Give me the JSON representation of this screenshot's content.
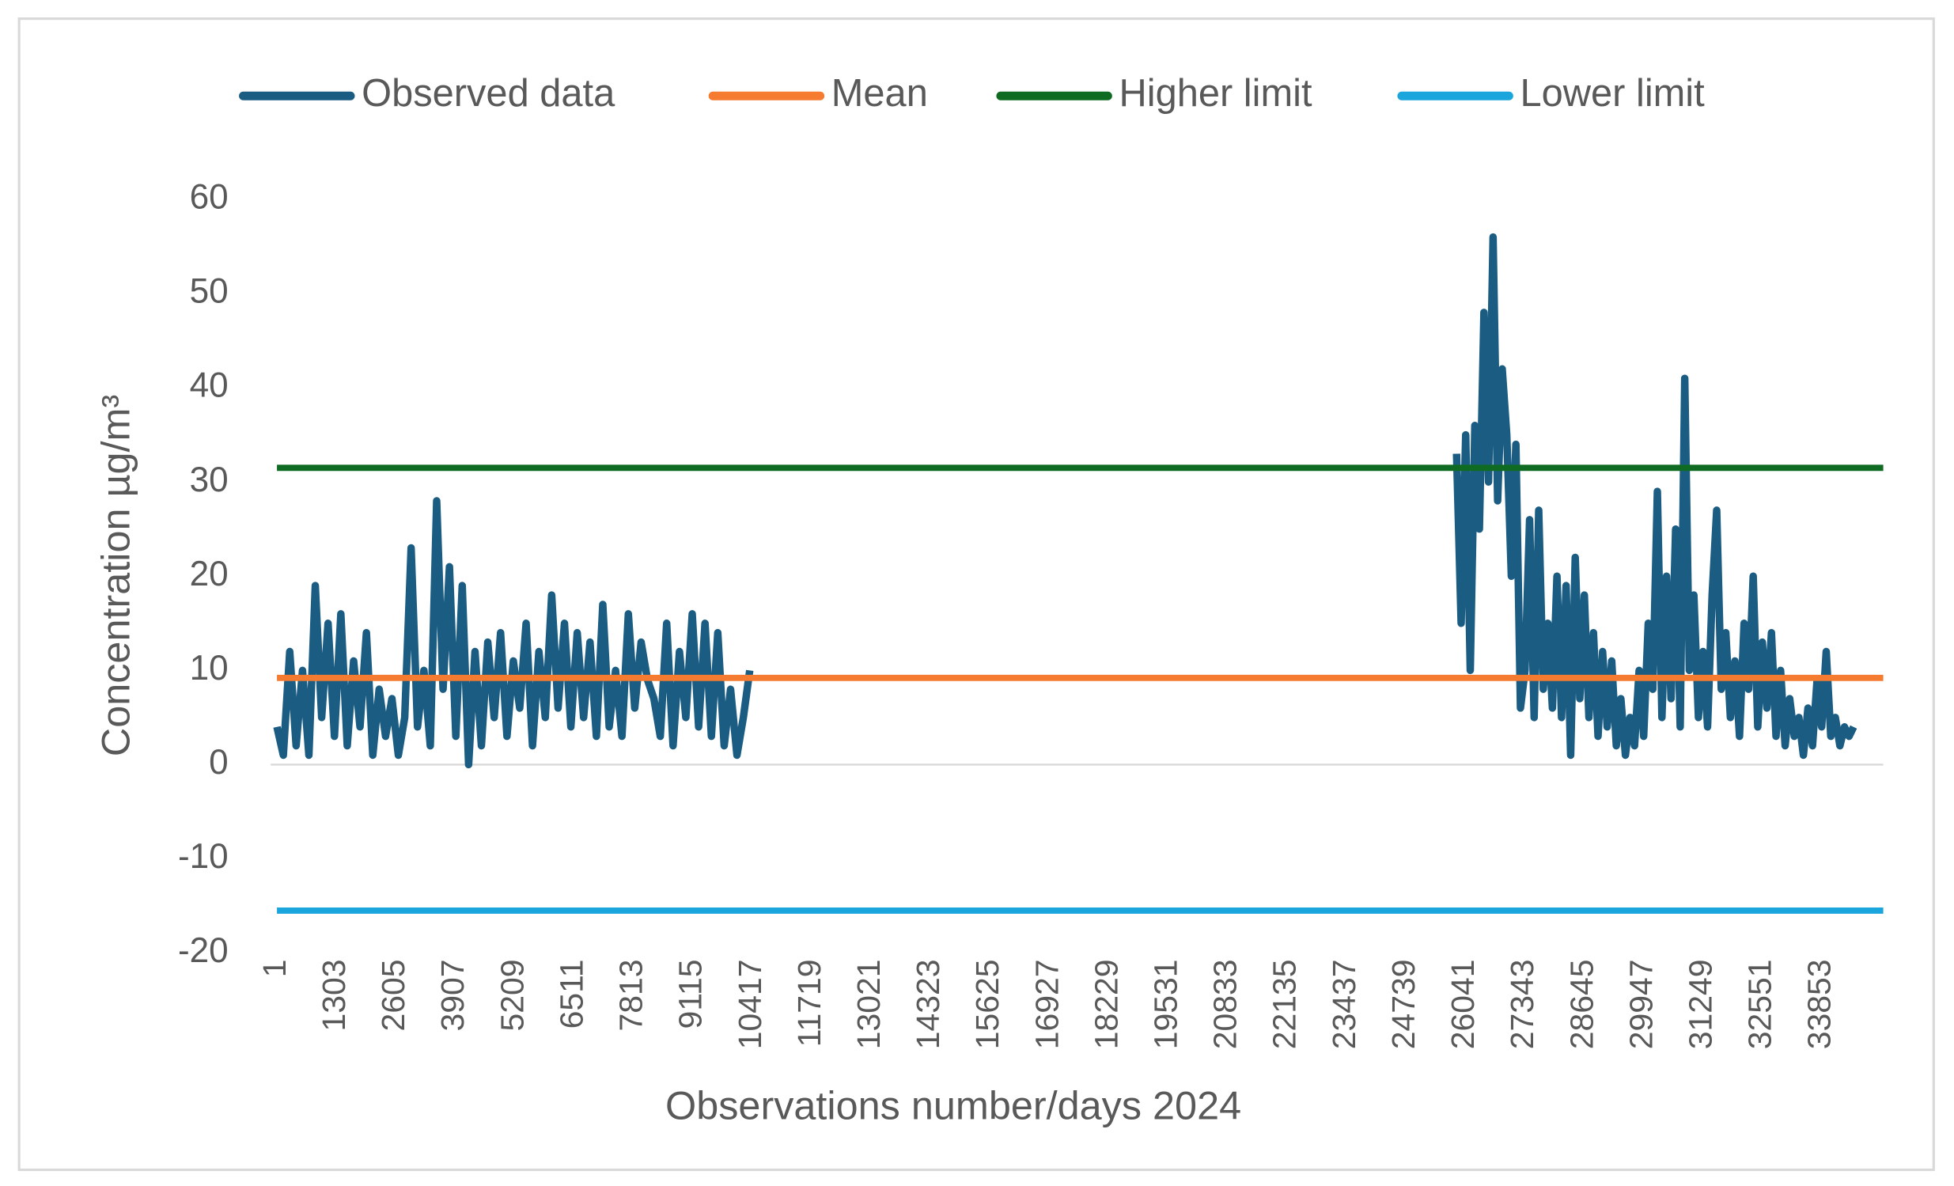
{
  "chart_data": {
    "type": "line",
    "xlabel": "Observations number/days 2024",
    "ylabel": "Concentration µg/m³",
    "xlim": [
      1,
      35200
    ],
    "xticks": [
      1,
      1303,
      2605,
      3907,
      5209,
      6511,
      7813,
      9115,
      10417,
      11719,
      13021,
      14323,
      15625,
      16927,
      18229,
      19531,
      20833,
      22135,
      23437,
      24739,
      26041,
      27343,
      28645,
      29947,
      31249,
      32551,
      33853
    ],
    "ylim": [
      -20,
      60
    ],
    "yticks": [
      -20,
      -10,
      0,
      10,
      20,
      30,
      40,
      50,
      60
    ],
    "grid": false,
    "legend": "top",
    "series": [
      {
        "name": "Observed data",
        "color": "#1b5c82",
        "x": [
          1,
          141,
          281,
          421,
          561,
          701,
          841,
          981,
          1121,
          1261,
          1401,
          1541,
          1681,
          1821,
          1961,
          2101,
          2241,
          2381,
          2521,
          2661,
          2801,
          2941,
          3081,
          3221,
          3361,
          3501,
          3641,
          3781,
          3921,
          4061,
          4201,
          4341,
          4481,
          4621,
          4761,
          4901,
          5041,
          5181,
          5321,
          5461,
          5601,
          5741,
          5881,
          6021,
          6161,
          6301,
          6441,
          6581,
          6721,
          6861,
          7001,
          7141,
          7281,
          7421,
          7561,
          7701,
          7841,
          7981,
          8121,
          8261,
          8401,
          8541,
          8681,
          8821,
          8961,
          9101,
          9241,
          9381,
          9521,
          9661,
          9801,
          9941,
          10081,
          10221,
          10361,
          18000,
          25850,
          25950,
          26050,
          26150,
          26250,
          26350,
          26450,
          26550,
          26650,
          26750,
          26850,
          26950,
          27050,
          27150,
          27250,
          27350,
          27450,
          27550,
          27650,
          27750,
          27850,
          27950,
          28050,
          28150,
          28250,
          28350,
          28450,
          28550,
          28650,
          28750,
          28850,
          28950,
          29050,
          29150,
          29250,
          29350,
          29450,
          29550,
          29650,
          29750,
          29850,
          29950,
          30050,
          30150,
          30250,
          30350,
          30450,
          30550,
          30650,
          30750,
          30850,
          30950,
          31050,
          31150,
          31250,
          31350,
          31450,
          31550,
          31650,
          31750,
          31850,
          31950,
          32050,
          32150,
          32250,
          32350,
          32450,
          32550,
          32650,
          32750,
          32850,
          32950,
          33050,
          33150,
          33250,
          33350,
          33450,
          33550,
          33650,
          33750,
          33850,
          33950,
          34050,
          34150,
          34250,
          34350,
          34450,
          34550
        ],
        "values": [
          4,
          1,
          12,
          2,
          10,
          1,
          19,
          5,
          15,
          3,
          16,
          2,
          11,
          4,
          14,
          1,
          8,
          3,
          7,
          1,
          5,
          23,
          4,
          10,
          2,
          28,
          8,
          21,
          3,
          19,
          0,
          12,
          2,
          13,
          5,
          14,
          3,
          11,
          6,
          15,
          2,
          12,
          5,
          18,
          6,
          15,
          4,
          14,
          5,
          13,
          3,
          17,
          4,
          10,
          3,
          16,
          6,
          13,
          9,
          7,
          3,
          15,
          2,
          12,
          5,
          16,
          4,
          15,
          3,
          14,
          2,
          8,
          1,
          5,
          10,
          null,
          33,
          15,
          35,
          10,
          36,
          25,
          48,
          30,
          56,
          28,
          42,
          35,
          20,
          34,
          6,
          10,
          26,
          5,
          27,
          8,
          15,
          6,
          20,
          5,
          19,
          1,
          22,
          7,
          18,
          5,
          14,
          3,
          12,
          4,
          11,
          2,
          7,
          1,
          5,
          2,
          10,
          3,
          15,
          8,
          29,
          5,
          20,
          7,
          25,
          4,
          41,
          10,
          18,
          5,
          12,
          4,
          18,
          27,
          8,
          14,
          5,
          11,
          3,
          15,
          8,
          20,
          4,
          13,
          6,
          14,
          3,
          10,
          2,
          7,
          3,
          5,
          1,
          6,
          2,
          9,
          4,
          12,
          3,
          5,
          2,
          4,
          3,
          4
        ]
      },
      {
        "name": "Mean",
        "color": "#f47b30",
        "x": [
          1,
          35200
        ],
        "values": [
          9.2,
          9.2
        ]
      },
      {
        "name": "Higher limit",
        "color": "#0f6b22",
        "x": [
          1,
          35200
        ],
        "values": [
          31.5,
          31.5
        ]
      },
      {
        "name": "Lower limit",
        "color": "#1aa5dc",
        "x": [
          1,
          35200
        ],
        "values": [
          -15.5,
          -15.5
        ]
      }
    ]
  }
}
